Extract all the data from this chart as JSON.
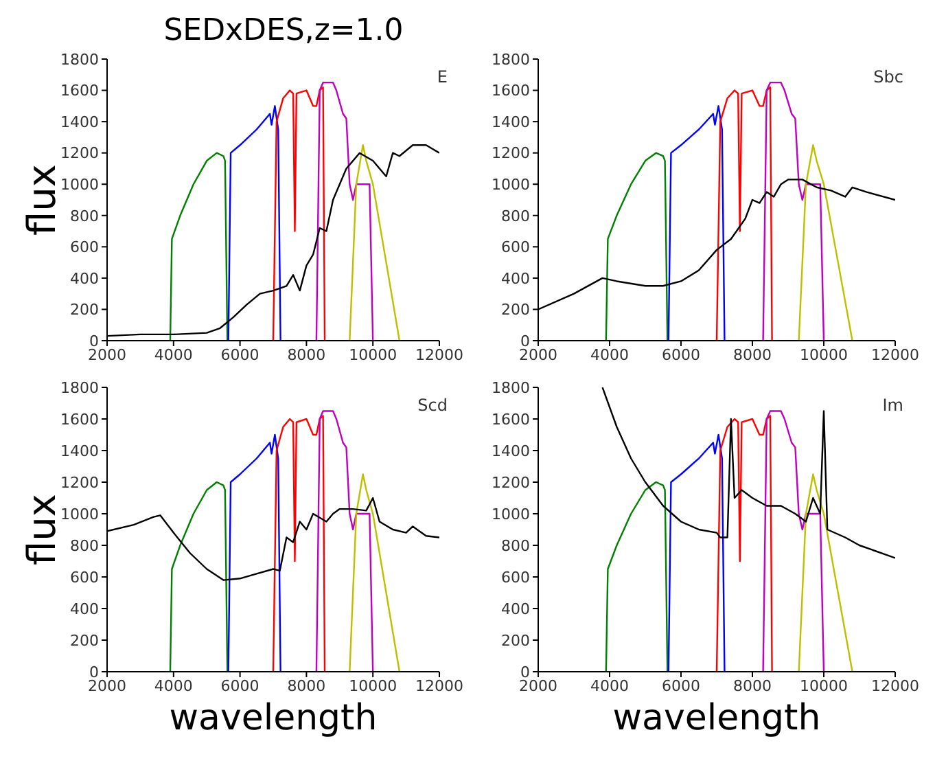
{
  "chart_data": [
    {
      "type": "line",
      "title": "SEDxDES,z=1.0",
      "ylabel": "flux",
      "annotations": [
        "E"
      ],
      "xlim": [
        2000,
        12000
      ],
      "ylim": [
        0,
        1800
      ],
      "xticks": [
        2000,
        4000,
        6000,
        8000,
        10000,
        12000
      ],
      "yticks": [
        0,
        200,
        400,
        600,
        800,
        1000,
        1200,
        1400,
        1600,
        1800
      ],
      "grid": false,
      "legend": false,
      "series": [
        {
          "color": "#008000",
          "x": [
            3900,
            3950,
            4200,
            4600,
            5000,
            5300,
            5500,
            5550,
            5620
          ],
          "values": [
            0,
            650,
            800,
            1000,
            1150,
            1200,
            1180,
            1150,
            0
          ]
        },
        {
          "color": "#0000ff",
          "x": [
            5650,
            5720,
            6000,
            6500,
            6900,
            6950,
            7050,
            7150,
            7220
          ],
          "values": [
            0,
            1200,
            1250,
            1350,
            1450,
            1380,
            1500,
            1350,
            0
          ]
        },
        {
          "color": "#ff0000",
          "x": [
            7000,
            7100,
            7300,
            7500,
            7600,
            7650,
            7700,
            8000,
            8200,
            8300,
            8400,
            8500,
            8550
          ],
          "values": [
            0,
            1400,
            1550,
            1600,
            1580,
            700,
            1580,
            1600,
            1500,
            1500,
            1600,
            1620,
            0
          ]
        },
        {
          "color": "#bf00bf",
          "x": [
            8300,
            8400,
            8500,
            8800,
            8900,
            9100,
            9200,
            9300,
            9400,
            9500,
            9900,
            10000
          ],
          "values": [
            0,
            1600,
            1650,
            1650,
            1600,
            1450,
            1420,
            1000,
            900,
            1000,
            1000,
            0
          ]
        },
        {
          "color": "#bfbf00",
          "x": [
            9300,
            9500,
            9700,
            9800,
            10000,
            10400,
            10800
          ],
          "values": [
            0,
            1000,
            1250,
            1150,
            1000,
            500,
            0
          ]
        },
        {
          "color": "#000000",
          "x": [
            2000,
            3000,
            4000,
            5000,
            5400,
            5800,
            6200,
            6600,
            7000,
            7400,
            7600,
            7800,
            8000,
            8200,
            8400,
            8600,
            8800,
            9200,
            9600,
            10000,
            10400,
            10600,
            10800,
            11200,
            11600,
            12000
          ],
          "values": [
            30,
            40,
            40,
            50,
            80,
            150,
            230,
            300,
            320,
            350,
            420,
            320,
            480,
            550,
            720,
            700,
            900,
            1100,
            1200,
            1150,
            1050,
            1200,
            1180,
            1250,
            1250,
            1200
          ]
        }
      ]
    },
    {
      "type": "line",
      "annotations": [
        "Sbc"
      ],
      "xlim": [
        2000,
        12000
      ],
      "ylim": [
        0,
        1800
      ],
      "xticks": [
        2000,
        4000,
        6000,
        8000,
        10000,
        12000
      ],
      "yticks": [
        0,
        200,
        400,
        600,
        800,
        1000,
        1200,
        1400,
        1600,
        1800
      ],
      "grid": false,
      "legend": false,
      "series": [
        {
          "color": "#008000",
          "x": [
            3900,
            3950,
            4200,
            4600,
            5000,
            5300,
            5500,
            5550,
            5620
          ],
          "values": [
            0,
            650,
            800,
            1000,
            1150,
            1200,
            1180,
            1150,
            0
          ]
        },
        {
          "color": "#0000ff",
          "x": [
            5650,
            5720,
            6000,
            6500,
            6900,
            6950,
            7050,
            7150,
            7220
          ],
          "values": [
            0,
            1200,
            1250,
            1350,
            1450,
            1380,
            1500,
            1350,
            0
          ]
        },
        {
          "color": "#ff0000",
          "x": [
            7000,
            7100,
            7300,
            7500,
            7600,
            7650,
            7700,
            8000,
            8200,
            8300,
            8400,
            8500,
            8550
          ],
          "values": [
            0,
            1400,
            1550,
            1600,
            1580,
            700,
            1580,
            1600,
            1500,
            1500,
            1600,
            1620,
            0
          ]
        },
        {
          "color": "#bf00bf",
          "x": [
            8300,
            8400,
            8500,
            8800,
            8900,
            9100,
            9200,
            9300,
            9400,
            9500,
            9900,
            10000
          ],
          "values": [
            0,
            1600,
            1650,
            1650,
            1600,
            1450,
            1420,
            1000,
            900,
            1000,
            1000,
            0
          ]
        },
        {
          "color": "#bfbf00",
          "x": [
            9300,
            9500,
            9700,
            9800,
            10000,
            10400,
            10800
          ],
          "values": [
            0,
            1000,
            1250,
            1150,
            1000,
            500,
            0
          ]
        },
        {
          "color": "#000000",
          "x": [
            2000,
            3000,
            3800,
            4200,
            5000,
            5500,
            6000,
            6500,
            7000,
            7400,
            7800,
            8000,
            8200,
            8400,
            8600,
            8800,
            9000,
            9400,
            9800,
            10200,
            10600,
            10800,
            11200,
            12000
          ],
          "values": [
            200,
            300,
            400,
            380,
            350,
            350,
            380,
            450,
            580,
            650,
            780,
            900,
            880,
            950,
            920,
            1000,
            1030,
            1030,
            980,
            960,
            920,
            980,
            950,
            900
          ]
        }
      ]
    },
    {
      "type": "line",
      "xlabel": "wavelength",
      "ylabel": "flux",
      "annotations": [
        "Scd"
      ],
      "xlim": [
        2000,
        12000
      ],
      "ylim": [
        0,
        1800
      ],
      "xticks": [
        2000,
        4000,
        6000,
        8000,
        10000,
        12000
      ],
      "yticks": [
        0,
        200,
        400,
        600,
        800,
        1000,
        1200,
        1400,
        1600,
        1800
      ],
      "grid": false,
      "legend": false,
      "series": [
        {
          "color": "#008000",
          "x": [
            3900,
            3950,
            4200,
            4600,
            5000,
            5300,
            5500,
            5550,
            5620
          ],
          "values": [
            0,
            650,
            800,
            1000,
            1150,
            1200,
            1180,
            1150,
            0
          ]
        },
        {
          "color": "#0000ff",
          "x": [
            5650,
            5720,
            6000,
            6500,
            6900,
            6950,
            7050,
            7150,
            7220
          ],
          "values": [
            0,
            1200,
            1250,
            1350,
            1450,
            1380,
            1500,
            1350,
            0
          ]
        },
        {
          "color": "#ff0000",
          "x": [
            7000,
            7100,
            7300,
            7500,
            7600,
            7650,
            7700,
            8000,
            8200,
            8300,
            8400,
            8500,
            8550
          ],
          "values": [
            0,
            1400,
            1550,
            1600,
            1580,
            700,
            1580,
            1600,
            1500,
            1500,
            1600,
            1620,
            0
          ]
        },
        {
          "color": "#bf00bf",
          "x": [
            8300,
            8400,
            8500,
            8800,
            8900,
            9100,
            9200,
            9300,
            9400,
            9500,
            9900,
            10000
          ],
          "values": [
            0,
            1600,
            1650,
            1650,
            1600,
            1450,
            1420,
            1000,
            900,
            1000,
            1000,
            0
          ]
        },
        {
          "color": "#bfbf00",
          "x": [
            9300,
            9500,
            9700,
            9800,
            10000,
            10400,
            10800
          ],
          "values": [
            0,
            1000,
            1250,
            1150,
            1000,
            500,
            0
          ]
        },
        {
          "color": "#000000",
          "x": [
            2000,
            2800,
            3400,
            3600,
            4000,
            4500,
            5000,
            5500,
            6000,
            6500,
            7000,
            7200,
            7400,
            7600,
            7800,
            8000,
            8200,
            8600,
            8800,
            9000,
            9400,
            9800,
            10000,
            10200,
            10600,
            11000,
            11200,
            11600,
            12000
          ],
          "values": [
            890,
            930,
            980,
            990,
            880,
            750,
            650,
            580,
            590,
            620,
            650,
            640,
            850,
            820,
            950,
            900,
            1000,
            950,
            1000,
            1030,
            1030,
            1020,
            1100,
            950,
            900,
            880,
            920,
            860,
            850
          ]
        }
      ]
    },
    {
      "type": "line",
      "xlabel": "wavelength",
      "annotations": [
        "Im"
      ],
      "xlim": [
        2000,
        12000
      ],
      "ylim": [
        0,
        1800
      ],
      "xticks": [
        2000,
        4000,
        6000,
        8000,
        10000,
        12000
      ],
      "yticks": [
        0,
        200,
        400,
        600,
        800,
        1000,
        1200,
        1400,
        1600,
        1800
      ],
      "grid": false,
      "legend": false,
      "series": [
        {
          "color": "#008000",
          "x": [
            3900,
            3950,
            4200,
            4600,
            5000,
            5300,
            5500,
            5550,
            5620
          ],
          "values": [
            0,
            650,
            800,
            1000,
            1150,
            1200,
            1180,
            1150,
            0
          ]
        },
        {
          "color": "#0000ff",
          "x": [
            5650,
            5720,
            6000,
            6500,
            6900,
            6950,
            7050,
            7150,
            7220
          ],
          "values": [
            0,
            1200,
            1250,
            1350,
            1450,
            1380,
            1500,
            1350,
            0
          ]
        },
        {
          "color": "#ff0000",
          "x": [
            7000,
            7100,
            7300,
            7500,
            7600,
            7650,
            7700,
            8000,
            8200,
            8300,
            8400,
            8500,
            8550
          ],
          "values": [
            0,
            1400,
            1550,
            1600,
            1580,
            700,
            1580,
            1600,
            1500,
            1500,
            1600,
            1620,
            0
          ]
        },
        {
          "color": "#bf00bf",
          "x": [
            8300,
            8400,
            8500,
            8800,
            8900,
            9100,
            9200,
            9300,
            9400,
            9500,
            9900,
            10000
          ],
          "values": [
            0,
            1600,
            1650,
            1650,
            1600,
            1450,
            1420,
            1000,
            900,
            1000,
            1000,
            0
          ]
        },
        {
          "color": "#bfbf00",
          "x": [
            9300,
            9500,
            9700,
            9800,
            10000,
            10400,
            10800
          ],
          "values": [
            0,
            1000,
            1250,
            1150,
            1000,
            500,
            0
          ]
        },
        {
          "color": "#000000",
          "x": [
            3800,
            4200,
            4600,
            5000,
            5500,
            6000,
            6500,
            7000,
            7100,
            7300,
            7400,
            7500,
            7700,
            8000,
            8400,
            8800,
            9200,
            9500,
            9700,
            9900,
            10000,
            10100,
            10600,
            11000,
            12000
          ],
          "values": [
            1800,
            1550,
            1350,
            1200,
            1050,
            950,
            900,
            880,
            850,
            850,
            1600,
            1100,
            1150,
            1100,
            1050,
            1050,
            1000,
            950,
            1100,
            1000,
            1650,
            900,
            850,
            800,
            720
          ]
        }
      ]
    }
  ]
}
